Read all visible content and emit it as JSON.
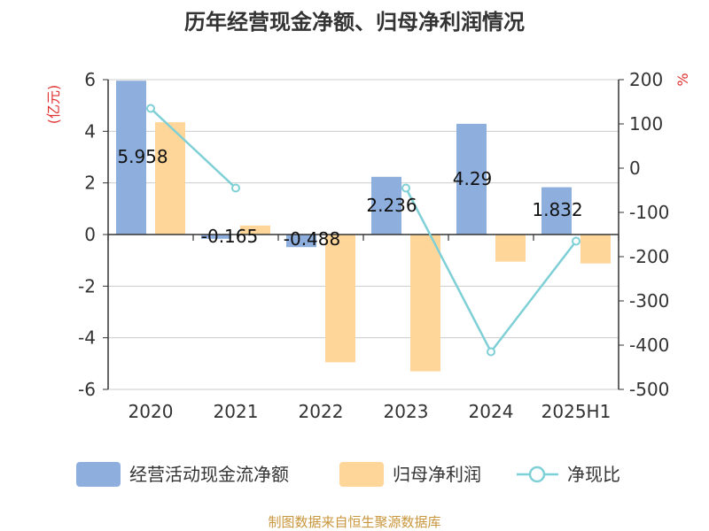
{
  "chart_data": {
    "type": "bar",
    "title": "历年经营现金净额、归母净利润情况",
    "categories": [
      "2020",
      "2021",
      "2022",
      "2023",
      "2024",
      "2025H1"
    ],
    "y_left": {
      "unit": "(亿元)",
      "ylim": [
        -6,
        6
      ],
      "ticks": [
        "6",
        "4",
        "2",
        "0",
        "-2",
        "-4",
        "-6"
      ]
    },
    "y_right": {
      "unit": "%",
      "ylim": [
        -500,
        200
      ],
      "ticks": [
        "200",
        "100",
        "0",
        "-100",
        "-200",
        "-300",
        "-400",
        "-500"
      ]
    },
    "series": [
      {
        "name": "经营活动现金流净额",
        "type": "bar",
        "axis": "left",
        "color": "#8eaedd",
        "values": [
          5.958,
          -0.165,
          -0.488,
          2.236,
          4.29,
          1.832
        ],
        "labels": [
          "5.958",
          "-0.165",
          "-0.488",
          "2.236",
          "4.29",
          "1.832"
        ]
      },
      {
        "name": "归母净利润",
        "type": "bar",
        "axis": "left",
        "color": "#ffd699",
        "values": [
          4.35,
          0.35,
          -4.95,
          -5.3,
          -1.05,
          -1.12
        ]
      },
      {
        "name": "净现比",
        "type": "line",
        "axis": "right",
        "color": "#7fd0d6",
        "values": [
          135,
          -45,
          null,
          -45,
          -415,
          -165
        ]
      }
    ],
    "legend_position": "bottom",
    "grid": true
  },
  "source": "制图数据来自恒生聚源数据库"
}
